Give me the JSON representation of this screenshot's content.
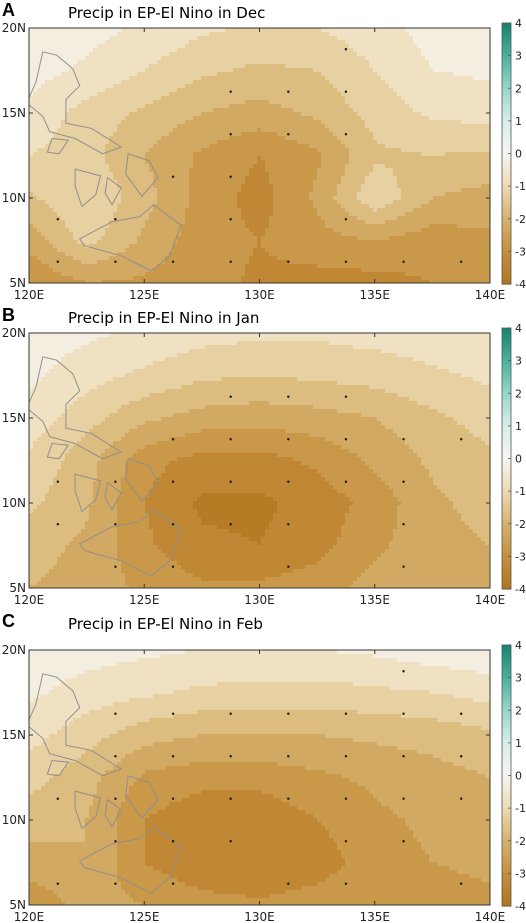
{
  "chart_data": [
    {
      "type": "heatmap",
      "panel_label": "A",
      "title": "Precip in EP-El Nino in Dec",
      "xlim": [
        120,
        140
      ],
      "ylim": [
        5,
        20
      ],
      "x_ticks": [
        "120E",
        "125E",
        "130E",
        "135E",
        "140E"
      ],
      "y_ticks": [
        "5N",
        "10N",
        "15N",
        "20N"
      ],
      "colorbar": {
        "range": [
          -4,
          4
        ],
        "ticks": [
          "4",
          "3",
          "2",
          "1",
          "0",
          "-1",
          "-2",
          "-3",
          "-4"
        ]
      },
      "grid_lon": [
        120,
        122.5,
        125,
        127.5,
        130,
        132.5,
        135,
        137.5,
        140
      ],
      "grid_lat": [
        5,
        7.5,
        10,
        12.5,
        15,
        17.5,
        20
      ],
      "z": [
        [
          -3.0,
          -2.5,
          -2.6,
          -2.8,
          -3.1,
          -3.2,
          -3.2,
          -3.0,
          -2.6
        ],
        [
          -2.3,
          -1.3,
          -2.1,
          -2.8,
          -3.0,
          -2.7,
          -2.5,
          -2.8,
          -2.6
        ],
        [
          -1.6,
          -1.0,
          -1.8,
          -2.7,
          -3.2,
          -2.4,
          -1.1,
          -2.0,
          -2.2
        ],
        [
          -1.0,
          -1.3,
          -2.0,
          -2.6,
          -3.0,
          -2.6,
          -1.6,
          -1.5,
          -1.6
        ],
        [
          -0.6,
          -1.2,
          -1.6,
          -2.0,
          -2.2,
          -1.9,
          -1.3,
          -0.9,
          -0.8
        ],
        [
          -0.3,
          -0.6,
          -1.0,
          -1.4,
          -1.6,
          -1.5,
          -1.0,
          -0.5,
          -0.4
        ],
        [
          -0.2,
          -0.3,
          -0.6,
          -0.9,
          -1.1,
          -1.0,
          -0.7,
          -0.3,
          -0.3
        ]
      ],
      "significant_points": [
        [
          121.25,
          6.25
        ],
        [
          123.75,
          6.25
        ],
        [
          126.25,
          6.25
        ],
        [
          128.75,
          6.25
        ],
        [
          131.25,
          6.25
        ],
        [
          133.75,
          6.25
        ],
        [
          136.25,
          6.25
        ],
        [
          138.75,
          6.25
        ],
        [
          121.25,
          8.75
        ],
        [
          123.75,
          8.75
        ],
        [
          128.75,
          8.75
        ],
        [
          133.75,
          8.75
        ],
        [
          126.25,
          11.25
        ],
        [
          128.75,
          11.25
        ],
        [
          128.75,
          13.75
        ],
        [
          131.25,
          13.75
        ],
        [
          133.75,
          13.75
        ],
        [
          128.75,
          16.25
        ],
        [
          131.25,
          16.25
        ],
        [
          133.75,
          16.25
        ],
        [
          133.75,
          18.75
        ]
      ]
    },
    {
      "type": "heatmap",
      "panel_label": "B",
      "title": "Precip in EP-El Nino in Jan",
      "xlim": [
        120,
        140
      ],
      "ylim": [
        5,
        20
      ],
      "x_ticks": [
        "120E",
        "125E",
        "130E",
        "135E",
        "140E"
      ],
      "y_ticks": [
        "5N",
        "10N",
        "15N",
        "20N"
      ],
      "colorbar": {
        "range": [
          -4,
          4
        ],
        "ticks": [
          "4",
          "3",
          "2",
          "1",
          "0",
          "-1",
          "-2",
          "-3",
          "-4"
        ]
      },
      "grid_lon": [
        120,
        122.5,
        125,
        127.5,
        130,
        132.5,
        135,
        137.5,
        140
      ],
      "grid_lat": [
        5,
        7.5,
        10,
        12.5,
        15,
        17.5,
        20
      ],
      "z": [
        [
          -2.0,
          -2.2,
          -2.6,
          -2.9,
          -2.9,
          -2.7,
          -2.3,
          -2.1,
          -2.0
        ],
        [
          -1.8,
          -2.1,
          -2.9,
          -3.4,
          -3.5,
          -3.2,
          -2.6,
          -2.2,
          -2.0
        ],
        [
          -1.4,
          -1.9,
          -3.0,
          -3.6,
          -3.6,
          -3.3,
          -2.8,
          -2.1,
          -1.8
        ],
        [
          -1.1,
          -1.8,
          -2.8,
          -3.2,
          -3.2,
          -2.9,
          -2.4,
          -1.9,
          -1.6
        ],
        [
          -0.7,
          -1.3,
          -1.9,
          -2.2,
          -2.3,
          -2.2,
          -2.0,
          -1.6,
          -1.3
        ],
        [
          -0.4,
          -0.8,
          -1.1,
          -1.4,
          -1.5,
          -1.4,
          -1.3,
          -1.1,
          -0.9
        ],
        [
          -0.2,
          -0.4,
          -0.6,
          -0.8,
          -0.9,
          -0.9,
          -0.8,
          -0.7,
          -0.6
        ]
      ],
      "significant_points": [
        [
          123.75,
          6.25
        ],
        [
          126.25,
          6.25
        ],
        [
          131.25,
          6.25
        ],
        [
          136.25,
          6.25
        ],
        [
          121.25,
          8.75
        ],
        [
          123.75,
          8.75
        ],
        [
          126.25,
          8.75
        ],
        [
          128.75,
          8.75
        ],
        [
          131.25,
          8.75
        ],
        [
          136.25,
          8.75
        ],
        [
          121.25,
          11.25
        ],
        [
          123.75,
          11.25
        ],
        [
          126.25,
          11.25
        ],
        [
          128.75,
          11.25
        ],
        [
          131.25,
          11.25
        ],
        [
          133.75,
          11.25
        ],
        [
          136.25,
          11.25
        ],
        [
          126.25,
          13.75
        ],
        [
          128.75,
          13.75
        ],
        [
          131.25,
          13.75
        ],
        [
          133.75,
          13.75
        ],
        [
          136.25,
          13.75
        ],
        [
          138.75,
          13.75
        ],
        [
          128.75,
          16.25
        ],
        [
          131.25,
          16.25
        ],
        [
          133.75,
          16.25
        ]
      ]
    },
    {
      "type": "heatmap",
      "panel_label": "C",
      "title": "Precip in EP-El Nino in Feb",
      "xlim": [
        120,
        140
      ],
      "ylim": [
        5,
        20
      ],
      "x_ticks": [
        "120E",
        "125E",
        "130E",
        "135E",
        "140E"
      ],
      "y_ticks": [
        "5N",
        "10N",
        "15N",
        "20N"
      ],
      "colorbar": {
        "range": [
          -4,
          4
        ],
        "ticks": [
          "4",
          "3",
          "2",
          "1",
          "0",
          "-1",
          "-2",
          "-3",
          "-4"
        ]
      },
      "grid_lon": [
        120,
        122.5,
        125,
        127.5,
        130,
        132.5,
        135,
        137.5,
        140
      ],
      "grid_lat": [
        5,
        7.5,
        10,
        12.5,
        15,
        17.5,
        20
      ],
      "z": [
        [
          -2.9,
          -2.3,
          -2.5,
          -2.8,
          -2.9,
          -2.7,
          -2.5,
          -2.9,
          -2.7
        ],
        [
          -2.2,
          -2.0,
          -3.0,
          -3.4,
          -3.5,
          -3.3,
          -2.7,
          -2.5,
          -2.3
        ],
        [
          -1.8,
          -2.0,
          -3.0,
          -3.4,
          -3.4,
          -3.0,
          -2.6,
          -2.4,
          -2.2
        ],
        [
          -1.3,
          -1.8,
          -2.6,
          -2.8,
          -2.8,
          -2.6,
          -2.4,
          -2.2,
          -2.0
        ],
        [
          -0.8,
          -1.3,
          -1.8,
          -2.0,
          -2.0,
          -2.0,
          -1.9,
          -1.8,
          -1.6
        ],
        [
          -0.4,
          -0.7,
          -0.9,
          -1.1,
          -1.2,
          -1.2,
          -1.1,
          -1.0,
          -0.8
        ],
        [
          -0.2,
          -0.3,
          -0.4,
          -0.5,
          -0.5,
          -0.5,
          -0.4,
          -0.2,
          -0.1
        ]
      ],
      "significant_points": [
        [
          121.25,
          6.25
        ],
        [
          123.75,
          6.25
        ],
        [
          126.25,
          6.25
        ],
        [
          131.25,
          6.25
        ],
        [
          133.75,
          6.25
        ],
        [
          138.75,
          6.25
        ],
        [
          123.75,
          8.75
        ],
        [
          126.25,
          8.75
        ],
        [
          128.75,
          8.75
        ],
        [
          133.75,
          8.75
        ],
        [
          136.25,
          8.75
        ],
        [
          121.25,
          11.25
        ],
        [
          123.75,
          11.25
        ],
        [
          126.25,
          11.25
        ],
        [
          128.75,
          11.25
        ],
        [
          131.25,
          11.25
        ],
        [
          133.75,
          11.25
        ],
        [
          136.25,
          11.25
        ],
        [
          138.75,
          11.25
        ],
        [
          123.75,
          13.75
        ],
        [
          126.25,
          13.75
        ],
        [
          128.75,
          13.75
        ],
        [
          131.25,
          13.75
        ],
        [
          133.75,
          13.75
        ],
        [
          136.25,
          13.75
        ],
        [
          138.75,
          13.75
        ],
        [
          123.75,
          16.25
        ],
        [
          126.25,
          16.25
        ],
        [
          128.75,
          16.25
        ],
        [
          131.25,
          16.25
        ],
        [
          133.75,
          16.25
        ],
        [
          136.25,
          16.25
        ],
        [
          138.75,
          16.25
        ],
        [
          136.25,
          18.75
        ]
      ]
    }
  ]
}
